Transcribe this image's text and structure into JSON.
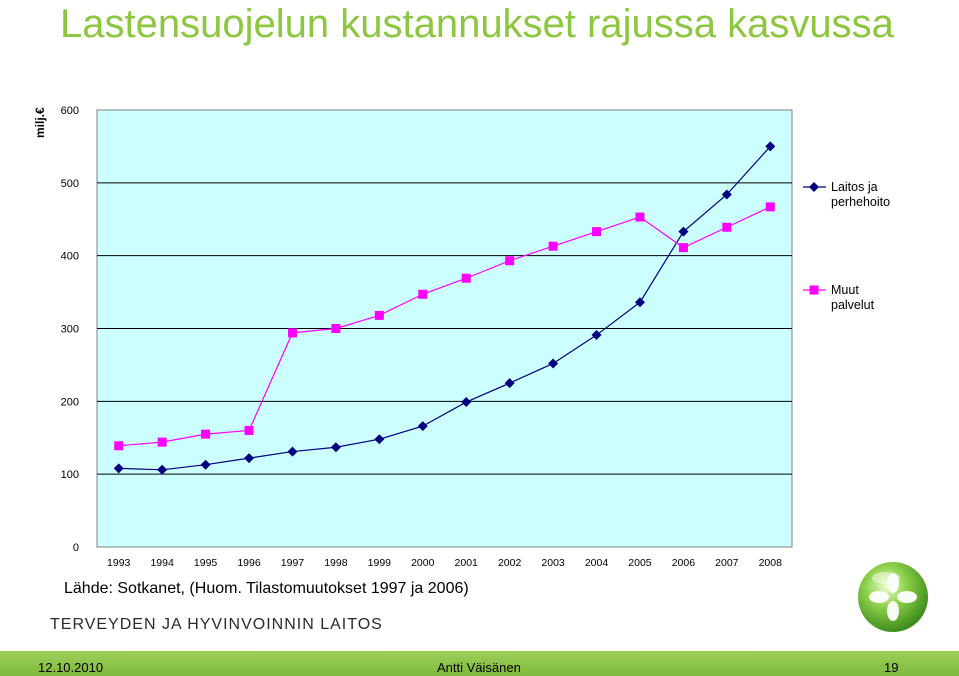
{
  "title": "Lastensuojelun kustannukset rajussa kasvussa",
  "unit_label": "milj.€",
  "source": "Lähde: Sotkanet, (Huom. Tilastomuutokset 1997 ja 2006)",
  "organization": "TERVEYDEN JA HYVINVOINNIN LAITOS",
  "footer": {
    "date": "12.10.2010",
    "author": "Antti Väisänen",
    "page": "19"
  },
  "colors": {
    "plot_background": "#ccffff",
    "series1": "#000080",
    "series2": "#ff00ff",
    "title": "#8dc63f",
    "footer": "#8dc63f"
  },
  "chart_data": {
    "type": "line",
    "title": "Lastensuojelun kustannukset rajussa kasvussa",
    "xlabel": "",
    "ylabel": "milj.€",
    "ylim": [
      0,
      600
    ],
    "yticks": [
      0,
      100,
      200,
      300,
      400,
      500,
      600
    ],
    "grid": true,
    "legend_position": "right",
    "categories": [
      "1993",
      "1994",
      "1995",
      "1996",
      "1997",
      "1998",
      "1999",
      "2000",
      "2001",
      "2002",
      "2003",
      "2004",
      "2005",
      "2006",
      "2007",
      "2008"
    ],
    "series": [
      {
        "name": "Laitos ja perhehoito",
        "marker": "diamond",
        "values": [
          108,
          106,
          113,
          122,
          131,
          137,
          148,
          166,
          199,
          225,
          252,
          291,
          336,
          433,
          484,
          550
        ]
      },
      {
        "name": "Muut palvelut",
        "marker": "square",
        "values": [
          139,
          144,
          155,
          160,
          294,
          300,
          318,
          347,
          369,
          393,
          413,
          433,
          453,
          411,
          439,
          467
        ]
      }
    ]
  }
}
